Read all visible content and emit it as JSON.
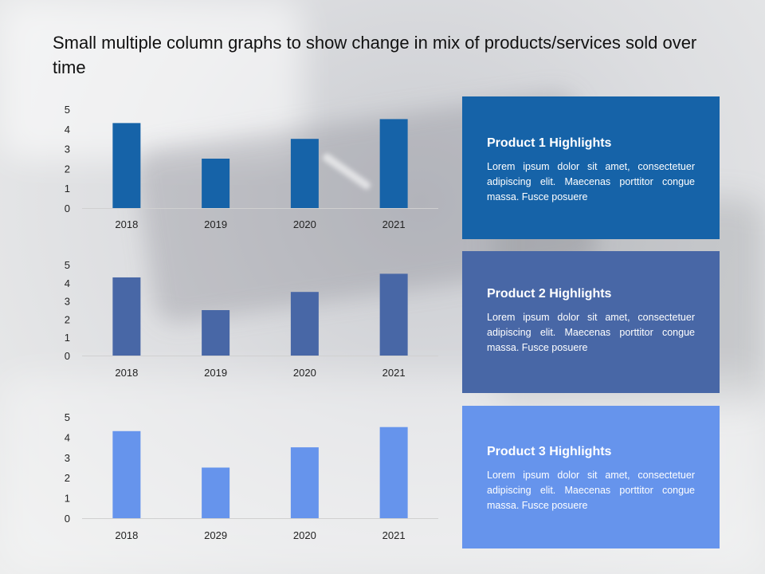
{
  "title": "Small multiple column graphs to show change in mix of products/services sold over time",
  "colors": {
    "product1": "#1663a8",
    "product2": "#4867a6",
    "product3": "#6694ec"
  },
  "chart_data": [
    {
      "type": "bar",
      "categories": [
        "2018",
        "2019",
        "2020",
        "2021"
      ],
      "values": [
        4.3,
        2.5,
        3.5,
        4.5
      ],
      "ylim": [
        0,
        5
      ],
      "yticks": [
        "0",
        "1",
        "2",
        "3",
        "4",
        "5"
      ],
      "color": "#1663a8",
      "grid": false
    },
    {
      "type": "bar",
      "categories": [
        "2018",
        "2019",
        "2020",
        "2021"
      ],
      "values": [
        4.3,
        2.5,
        3.5,
        4.5
      ],
      "ylim": [
        0,
        5
      ],
      "yticks": [
        "0",
        "1",
        "2",
        "3",
        "4",
        "5"
      ],
      "color": "#4867a6",
      "grid": false
    },
    {
      "type": "bar",
      "categories": [
        "2018",
        "2029",
        "2020",
        "2021"
      ],
      "values": [
        4.3,
        2.5,
        3.5,
        4.5
      ],
      "ylim": [
        0,
        5
      ],
      "yticks": [
        "0",
        "1",
        "2",
        "3",
        "4",
        "5"
      ],
      "color": "#6694ec",
      "grid": false
    }
  ],
  "panels": [
    {
      "heading": "Product 1 Highlights",
      "body": "Lorem ipsum dolor sit amet, consectetuer adipiscing elit. Maecenas porttitor congue massa. Fusce posuere",
      "color": "#1663a8"
    },
    {
      "heading": "Product 2 Highlights",
      "body": "Lorem ipsum dolor sit amet, consectetuer adipiscing elit. Maecenas porttitor congue massa. Fusce posuere",
      "color": "#4867a6"
    },
    {
      "heading": "Product 3 Highlights",
      "body": "Lorem ipsum dolor sit amet, consectetuer adipiscing elit. Maecenas porttitor congue massa. Fusce posuere",
      "color": "#6694ec"
    }
  ]
}
